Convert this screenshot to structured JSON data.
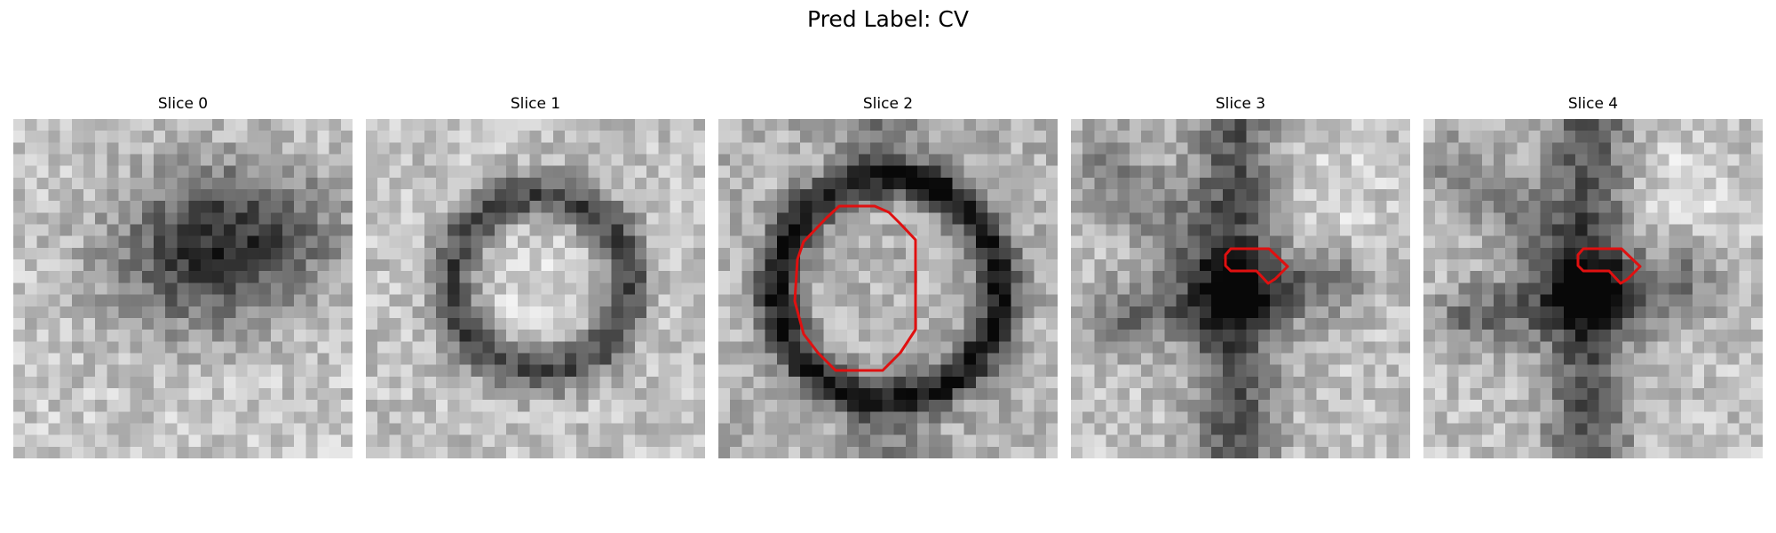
{
  "figure": {
    "title": "Pred Label: CV"
  },
  "panels": [
    {
      "title": "Slice 0",
      "texture": "dark-blob",
      "has_contour": false
    },
    {
      "title": "Slice 1",
      "texture": "ring",
      "has_contour": false
    },
    {
      "title": "Slice 2",
      "texture": "dark-ring",
      "has_contour": true,
      "contour_shape": "octagon"
    },
    {
      "title": "Slice 3",
      "texture": "x-shape",
      "has_contour": true,
      "contour_shape": "small-blob"
    },
    {
      "title": "Slice 4",
      "texture": "x-shape",
      "has_contour": true,
      "contour_shape": "small-blob"
    }
  ],
  "colors": {
    "contour": "#e01010",
    "background": "#ffffff"
  }
}
